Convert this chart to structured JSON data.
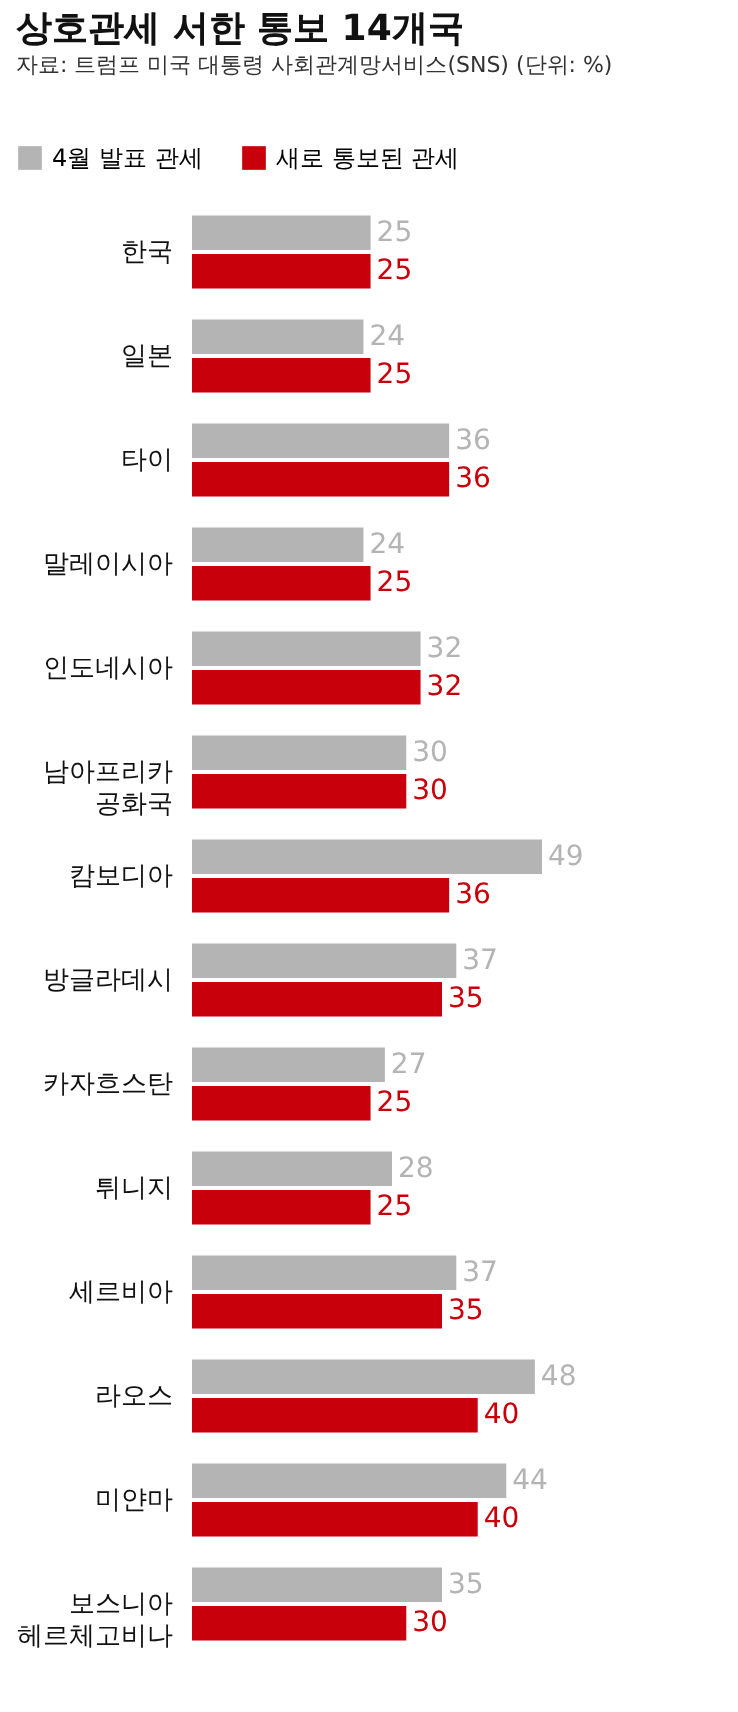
{
  "chart_data": {
    "type": "bar",
    "orientation": "horizontal",
    "title": "상호관세 서한 통보 14개국",
    "annotations": [
      "자료: 트럼프 미국 대통령 사회관계망서비스(SNS) (단위: %)"
    ],
    "categories": [
      "한국",
      "일본",
      "타이",
      "말레이시아",
      "인도네시아",
      "남아프리카\n공화국",
      "캄보디아",
      "방글라데시",
      "카자흐스탄",
      "튀니지",
      "세르비아",
      "라오스",
      "미얀마",
      "보스니아\n헤르체고비나"
    ],
    "series": [
      {
        "name": "4월 발표 관세",
        "color": "#b4b4b4",
        "values": [
          25,
          24,
          36,
          24,
          32,
          30,
          49,
          37,
          27,
          28,
          37,
          48,
          44,
          35
        ]
      },
      {
        "name": "새로 통보된 관세",
        "color": "#c8000b",
        "values": [
          25,
          25,
          36,
          25,
          32,
          30,
          36,
          35,
          25,
          25,
          35,
          40,
          40,
          30
        ]
      }
    ],
    "data_labels": true,
    "legend": "top left"
  }
}
